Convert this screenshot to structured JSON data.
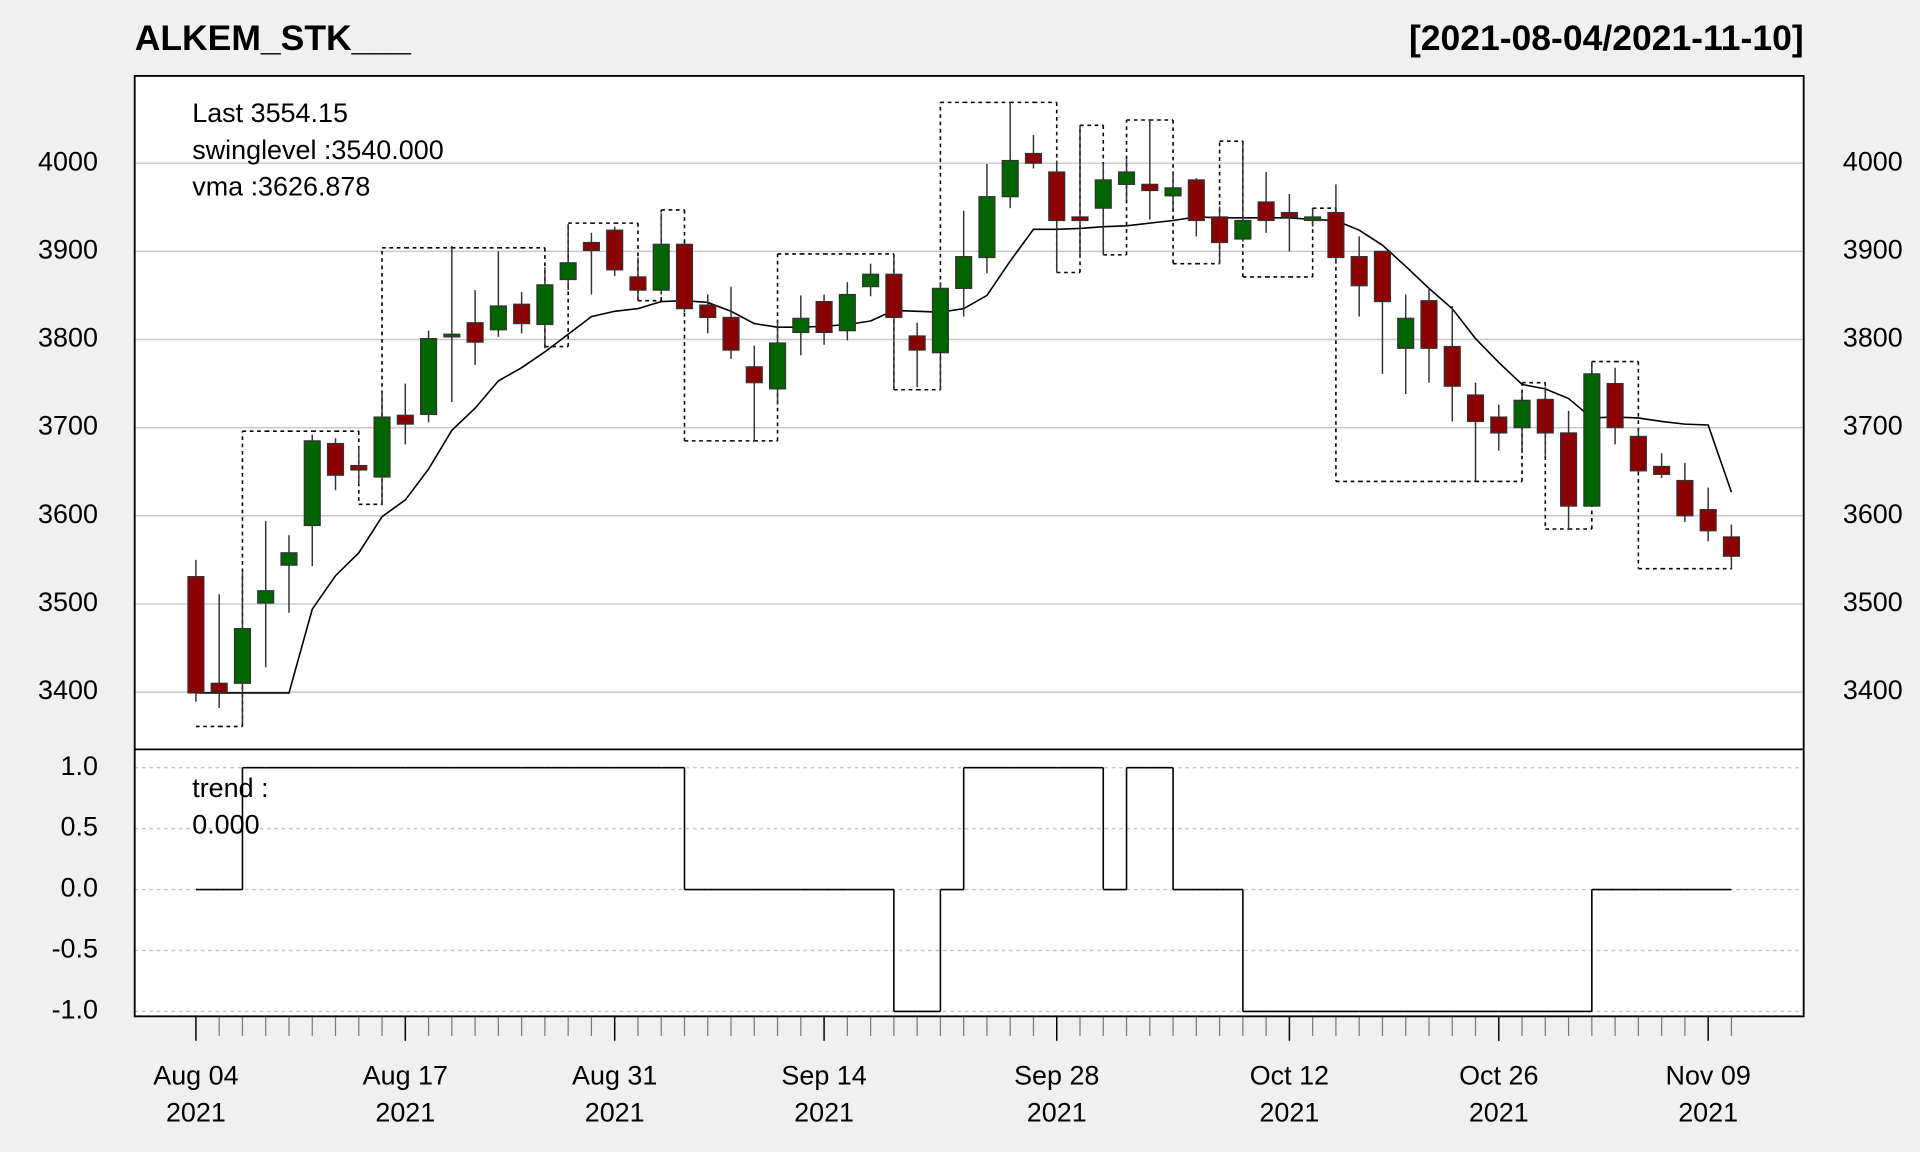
{
  "chart_data": [
    {
      "type": "candlestick",
      "title": "ALKEM_STK___",
      "date_range": "[2021-08-04/2021-11-10]",
      "x": [
        "2021-08-04",
        "2021-08-05",
        "2021-08-06",
        "2021-08-09",
        "2021-08-10",
        "2021-08-11",
        "2021-08-12",
        "2021-08-13",
        "2021-08-16",
        "2021-08-17",
        "2021-08-18",
        "2021-08-20",
        "2021-08-23",
        "2021-08-24",
        "2021-08-25",
        "2021-08-26",
        "2021-08-27",
        "2021-08-30",
        "2021-08-31",
        "2021-09-01",
        "2021-09-02",
        "2021-09-03",
        "2021-09-06",
        "2021-09-07",
        "2021-09-08",
        "2021-09-09",
        "2021-09-13",
        "2021-09-14",
        "2021-09-15",
        "2021-09-16",
        "2021-09-17",
        "2021-09-20",
        "2021-09-21",
        "2021-09-22",
        "2021-09-23",
        "2021-09-24",
        "2021-09-27",
        "2021-09-28",
        "2021-09-29",
        "2021-09-30",
        "2021-10-01",
        "2021-10-04",
        "2021-10-05",
        "2021-10-06",
        "2021-10-07",
        "2021-10-08",
        "2021-10-11",
        "2021-10-12",
        "2021-10-13",
        "2021-10-14",
        "2021-10-18",
        "2021-10-19",
        "2021-10-20",
        "2021-10-21",
        "2021-10-22",
        "2021-10-25",
        "2021-10-26",
        "2021-10-27",
        "2021-10-28",
        "2021-10-29",
        "2021-11-01",
        "2021-11-02",
        "2021-11-03",
        "2021-11-04",
        "2021-11-08",
        "2021-11-09",
        "2021-11-10"
      ],
      "open": [
        3531,
        3410,
        3410,
        3501,
        3544,
        3589,
        3682,
        3657,
        3644,
        3714,
        3715,
        3803,
        3819,
        3811,
        3840,
        3817,
        3868,
        3910,
        3924,
        3871,
        3856,
        3908,
        3839,
        3825,
        3769,
        3744,
        3808,
        3843,
        3810,
        3860,
        3874,
        3804,
        3785,
        3858,
        3893,
        3962,
        4011,
        3990,
        3939,
        3949,
        3976,
        3976,
        3963,
        3981,
        3939,
        3914,
        3956,
        3944,
        3935,
        3944,
        3894,
        3900,
        3790,
        3844,
        3792,
        3737,
        3712,
        3700,
        3732,
        3694,
        3611,
        3750,
        3690,
        3656,
        3640,
        3607,
        3576
      ],
      "high": [
        3550,
        3511,
        3536,
        3594,
        3578,
        3692,
        3688,
        3678,
        3740,
        3750,
        3810,
        3906,
        3856,
        3900,
        3854,
        3882,
        3931,
        3921,
        3928,
        3893,
        3943,
        3910,
        3851,
        3860,
        3793,
        3821,
        3850,
        3851,
        3865,
        3886,
        3896,
        3819,
        3865,
        3946,
        3999,
        4069,
        4032,
        4003,
        4043,
        4000,
        4004,
        4049,
        3990,
        3983,
        3951,
        4025,
        3990,
        3965,
        3949,
        3976,
        3917,
        3900,
        3851,
        3858,
        3838,
        3751,
        3726,
        3740,
        3746,
        3719,
        3775,
        3768,
        3699,
        3671,
        3660,
        3632,
        3590
      ],
      "low": [
        3389,
        3382,
        3365,
        3428,
        3490,
        3543,
        3629,
        3636,
        3612,
        3681,
        3706,
        3729,
        3771,
        3803,
        3807,
        3790,
        3856,
        3851,
        3872,
        3844,
        3851,
        3831,
        3807,
        3778,
        3685,
        3726,
        3782,
        3794,
        3799,
        3849,
        3743,
        3746,
        3743,
        3826,
        3875,
        3949,
        3994,
        3876,
        3893,
        3896,
        3958,
        3936,
        3949,
        3917,
        3886,
        3911,
        3921,
        3900,
        3928,
        3886,
        3826,
        3761,
        3738,
        3751,
        3707,
        3639,
        3674,
        3671,
        3668,
        3585,
        3611,
        3681,
        3650,
        3643,
        3593,
        3571,
        3539
      ],
      "close": [
        3399,
        3400,
        3472,
        3515,
        3558,
        3685,
        3646,
        3652,
        3712,
        3704,
        3801,
        3806,
        3797,
        3838,
        3818,
        3862,
        3887,
        3901,
        3879,
        3856,
        3908,
        3835,
        3825,
        3788,
        3751,
        3796,
        3824,
        3808,
        3851,
        3874,
        3825,
        3788,
        3858,
        3894,
        3962,
        4003,
        4000,
        3935,
        3935,
        3981,
        3990,
        3969,
        3972,
        3935,
        3910,
        3935,
        3935,
        3939,
        3939,
        3893,
        3861,
        3843,
        3824,
        3790,
        3747,
        3707,
        3694,
        3731,
        3694,
        3611,
        3761,
        3700,
        3651,
        3647,
        3600,
        3583,
        3554.15
      ],
      "up_color": "#006400",
      "down_color": "#8b0000",
      "vma": {
        "color": "#000000",
        "values": [
          3399,
          3399,
          3399,
          3399,
          3399,
          3494,
          3532,
          3558,
          3599,
          3618,
          3653,
          3697,
          3722,
          3753,
          3768,
          3786,
          3806,
          3826,
          3832,
          3835,
          3843,
          3844,
          3842,
          3832,
          3818,
          3814,
          3814,
          3815,
          3817,
          3821,
          3833,
          3832,
          3831,
          3835,
          3850,
          3889,
          3925,
          3925,
          3926,
          3928,
          3929,
          3932,
          3935,
          3939,
          3938,
          3938,
          3938,
          3938,
          3936,
          3935,
          3924,
          3907,
          3883,
          3858,
          3835,
          3801,
          3774,
          3749,
          3744,
          3733,
          3711,
          3712,
          3711,
          3707,
          3704,
          3703,
          3626.878
        ]
      },
      "swinglevel": {
        "color": "#000000",
        "values": [
          3361,
          3361,
          3696,
          3696,
          3696,
          3696,
          3696,
          3613,
          3904,
          3904,
          3904,
          3904,
          3904,
          3904,
          3904,
          3792,
          3932,
          3932,
          3932,
          3844,
          3947,
          3685,
          3685,
          3685,
          3685,
          3897,
          3897,
          3897,
          3897,
          3897,
          3743,
          3743,
          4069,
          4069,
          4069,
          4069,
          4069,
          3876,
          4043,
          3896,
          4049,
          4049,
          3886,
          3886,
          4025,
          3871,
          3871,
          3871,
          3949,
          3639,
          3639,
          3639,
          3639,
          3639,
          3639,
          3639,
          3639,
          3751,
          3585,
          3585,
          3775,
          3775,
          3540,
          3540,
          3540,
          3540,
          3540
        ]
      },
      "legend": [
        {
          "text": "Last 3554.15",
          "color": "#8b0000"
        },
        {
          "text": "swinglevel :3540.000",
          "color": "#000000"
        },
        {
          "text": "vma :3626.878",
          "color": "#000000"
        }
      ],
      "ylim": [
        3335,
        4099
      ],
      "yticks": [
        3400,
        3500,
        3600,
        3700,
        3800,
        3900,
        4000
      ],
      "grid": true,
      "xticks": [
        {
          "value": "2021-08-04",
          "label": [
            "Aug 04",
            "2021"
          ]
        },
        {
          "value": "2021-08-17",
          "label": [
            "Aug 17",
            "2021"
          ]
        },
        {
          "value": "2021-08-31",
          "label": [
            "Aug 31",
            "2021"
          ]
        },
        {
          "value": "2021-09-14",
          "label": [
            "Sep 14",
            "2021"
          ]
        },
        {
          "value": "2021-09-28",
          "label": [
            "Sep 28",
            "2021"
          ]
        },
        {
          "value": "2021-10-12",
          "label": [
            "Oct 12",
            "2021"
          ]
        },
        {
          "value": "2021-10-26",
          "label": [
            "Oct 26",
            "2021"
          ]
        },
        {
          "value": "2021-11-09",
          "label": [
            "Nov 09",
            "2021"
          ]
        }
      ]
    },
    {
      "type": "step",
      "color": "#000000",
      "values": [
        0,
        0,
        1,
        1,
        1,
        1,
        1,
        1,
        1,
        1,
        1,
        1,
        1,
        1,
        1,
        1,
        1,
        1,
        1,
        1,
        1,
        0,
        0,
        0,
        0,
        0,
        0,
        0,
        0,
        0,
        -1,
        -1,
        0,
        1,
        1,
        1,
        1,
        1,
        1,
        0,
        1,
        1,
        0,
        0,
        0,
        -1,
        -1,
        -1,
        -1,
        -1,
        -1,
        -1,
        -1,
        -1,
        -1,
        -1,
        -1,
        -1,
        -1,
        -1,
        0,
        0,
        0,
        0,
        0,
        0,
        0
      ],
      "legend": [
        "trend :",
        "0.000"
      ],
      "ylim": [
        -1.04,
        1.15
      ],
      "yticks": [
        {
          "value": 1,
          "label": "1.0"
        },
        {
          "value": 0.5,
          "label": "0.5"
        },
        {
          "value": 0,
          "label": "0.0"
        },
        {
          "value": -0.5,
          "label": "-0.5"
        },
        {
          "value": -1,
          "label": "-1.0"
        }
      ],
      "grid": true
    }
  ]
}
